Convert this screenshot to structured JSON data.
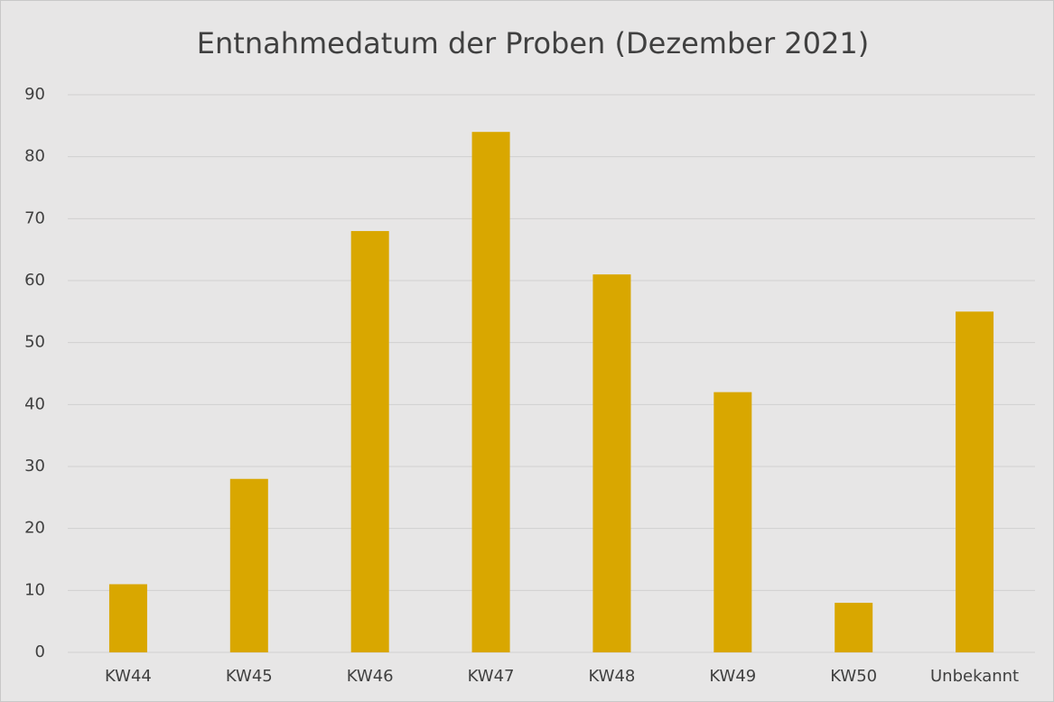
{
  "chart_data": {
    "type": "bar",
    "title": "Entnahmedatum der Proben (Dezember 2021)",
    "categories": [
      "KW44",
      "KW45",
      "KW46",
      "KW47",
      "KW48",
      "KW49",
      "KW50",
      "Unbekannt"
    ],
    "values": [
      11,
      28,
      68,
      84,
      61,
      42,
      8,
      55
    ],
    "color": "#d9a700",
    "ylim": [
      0,
      90
    ],
    "yticks": [
      0,
      10,
      20,
      30,
      40,
      50,
      60,
      70,
      80,
      90
    ],
    "grid": true
  }
}
